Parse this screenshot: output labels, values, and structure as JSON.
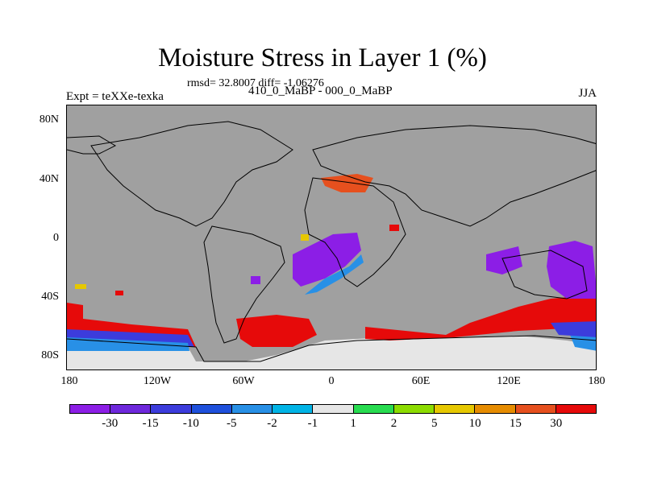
{
  "title": "Moisture Stress in Layer 1 (%)",
  "stats": "rmsd= 32.8007 diff= -1.06276",
  "experiment": "Expt = teXXe-texka",
  "comparison": "410_0_MaBP - 000_0_MaBP",
  "season": "JJA",
  "lat_labels": [
    "80N",
    "40N",
    "0",
    "40S",
    "80S"
  ],
  "lon_labels": [
    "180",
    "120W",
    "60W",
    "0",
    "60E",
    "120E",
    "180"
  ],
  "colorbar": {
    "colors": [
      "#8c1ee6",
      "#6e28dc",
      "#3c3cdc",
      "#1e50dc",
      "#2890e6",
      "#00b4e6",
      "#e6e6e6",
      "#28dc50",
      "#8cdc00",
      "#e6c800",
      "#e68c00",
      "#e6501e",
      "#e60a0a"
    ],
    "labels": [
      "-30",
      "-15",
      "-10",
      "-5",
      "-2",
      "-1",
      "1",
      "2",
      "5",
      "10",
      "15",
      "30"
    ]
  },
  "map_colors": {
    "background": "#a0a0a0",
    "ice": "#e6e6e6",
    "negative_strong": "#8c1ee6",
    "negative_medium": "#3c3cdc",
    "negative_weak": "#2890e6",
    "positive_strong": "#e60a0a",
    "positive_medium": "#e6501e",
    "positive_weak": "#e6c800"
  }
}
